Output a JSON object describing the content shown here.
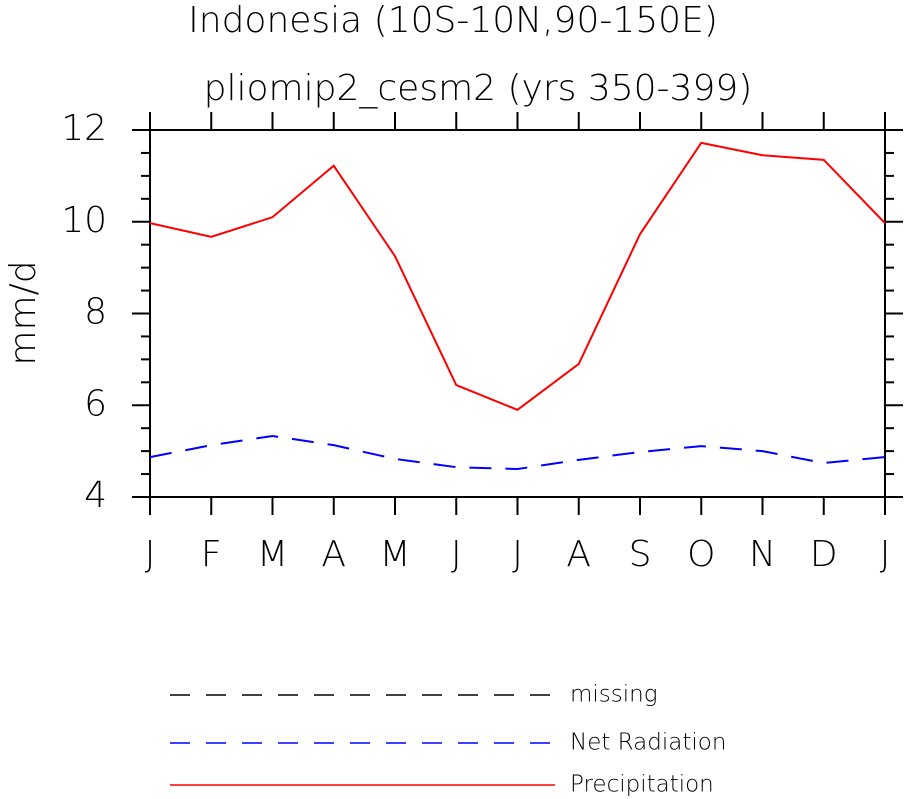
{
  "chart_data": {
    "type": "line",
    "title": "Indonesia (10S-10N,90-150E)",
    "subtitle": "pliomip2_cesm2 (yrs 350-399)",
    "y_label": "mm/d",
    "categories": [
      "J",
      "F",
      "M",
      "A",
      "M",
      "J",
      "J",
      "A",
      "S",
      "O",
      "N",
      "D",
      "J"
    ],
    "ylim": [
      4,
      12
    ],
    "yticks": [
      4,
      6,
      8,
      10,
      12
    ],
    "yminorticks": [
      4.5,
      5,
      5.5,
      6.5,
      7,
      7.5,
      8.5,
      9,
      9.5,
      10.5,
      11,
      11.5
    ],
    "series": [
      {
        "name": "missing",
        "color": "#000000",
        "dash": true,
        "values": [
          null,
          null,
          null,
          null,
          null,
          null,
          null,
          null,
          null,
          null,
          null,
          null,
          null
        ]
      },
      {
        "name": "Net Radiation",
        "color": "#0000ff",
        "dash": true,
        "values": [
          4.87,
          5.13,
          5.33,
          5.13,
          4.83,
          4.65,
          4.61,
          4.81,
          4.98,
          5.11,
          5.0,
          4.74,
          4.87
        ]
      },
      {
        "name": "Precipitation",
        "color": "#ff0000",
        "dash": false,
        "values": [
          9.97,
          9.67,
          10.1,
          11.22,
          9.25,
          6.44,
          5.9,
          6.9,
          9.73,
          11.72,
          11.45,
          11.35,
          9.97
        ]
      }
    ]
  }
}
